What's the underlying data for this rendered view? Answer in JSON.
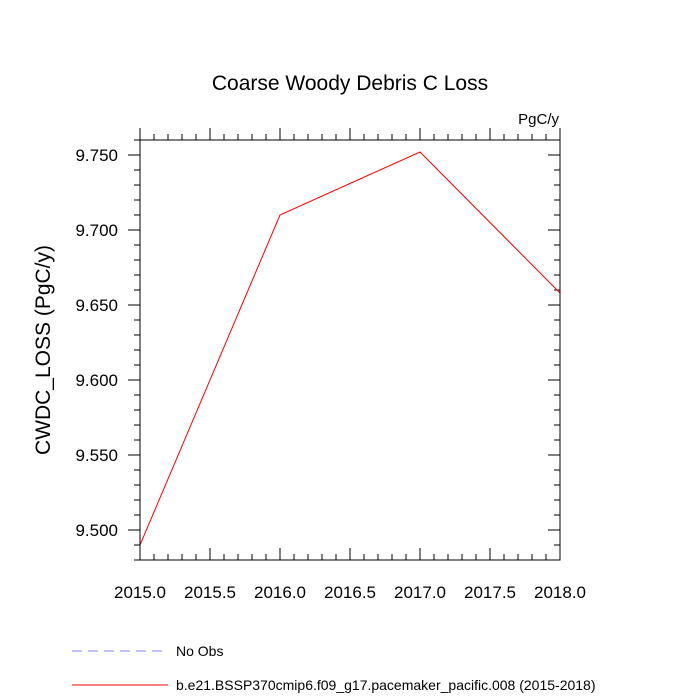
{
  "chart_data": {
    "type": "line",
    "title": "Coarse Woody Debris C Loss",
    "units": "PgC/y",
    "ylabel": "CWDC_LOSS  (PgC/y)",
    "xlabel": "",
    "xlim": [
      2015.0,
      2018.0
    ],
    "ylim": [
      9.48,
      9.76
    ],
    "xticks": [
      2015.0,
      2015.5,
      2016.0,
      2016.5,
      2017.0,
      2017.5,
      2018.0
    ],
    "xtick_labels": [
      "2015.0",
      "2015.5",
      "2016.0",
      "2016.5",
      "2017.0",
      "2017.5",
      "2018.0"
    ],
    "yticks": [
      9.5,
      9.55,
      9.6,
      9.65,
      9.7,
      9.75
    ],
    "ytick_labels": [
      "9.500",
      "9.550",
      "9.600",
      "9.650",
      "9.700",
      "9.750"
    ],
    "grid": false,
    "legend_position": "bottom",
    "series": [
      {
        "name": "b.e21.BSSP370cmip6.f09_g17.pacemaker_pacific.008 (2015-2018)",
        "color": "#ff0000",
        "dash": "solid",
        "x": [
          2015,
          2016,
          2017,
          2018
        ],
        "y": [
          9.49,
          9.71,
          9.752,
          9.658
        ]
      }
    ],
    "legend": [
      {
        "label": "No Obs",
        "color": "#8080ff",
        "dash": "dashed"
      },
      {
        "label": "b.e21.BSSP370cmip6.f09_g17.pacemaker_pacific.008 (2015-2018)",
        "color": "#ff0000",
        "dash": "solid"
      }
    ]
  }
}
